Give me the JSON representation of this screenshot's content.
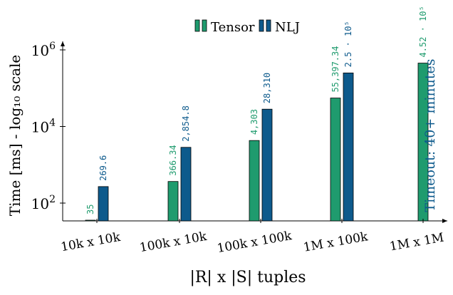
{
  "chart_data": {
    "type": "bar",
    "categories": [
      "10k x 10k",
      "100k x 10k",
      "100k x 100k",
      "1M x 100k",
      "1M x 1M"
    ],
    "series": [
      {
        "name": "Tensor",
        "color": "#1f9b6e",
        "values": [
          35,
          366.34,
          4303,
          55397.34,
          452000
        ],
        "labels": [
          "35",
          "366.34",
          "4,303",
          "55,397.34",
          "4.52 · 10⁵"
        ]
      },
      {
        "name": "NLJ",
        "color": "#0d5a8c",
        "values": [
          269.6,
          2854.8,
          28310,
          250000,
          null
        ],
        "labels": [
          "269.6",
          "2,854.8",
          "28,310",
          "2.5 · 10⁵",
          ""
        ]
      }
    ],
    "xlabel": "|R| x |S| tuples",
    "ylabel": "Time [ms] - log₁₀ scale",
    "yscale": "log",
    "ylim": [
      30,
      1500000
    ],
    "yticks": [
      {
        "value": 100,
        "base": "10",
        "exp": "2"
      },
      {
        "value": 10000,
        "base": "10",
        "exp": "4"
      },
      {
        "value": 1000000,
        "base": "10",
        "exp": "6"
      }
    ],
    "legend_position": "top-center",
    "grid": false,
    "annotation": "Timeout: 40+ minutes"
  }
}
